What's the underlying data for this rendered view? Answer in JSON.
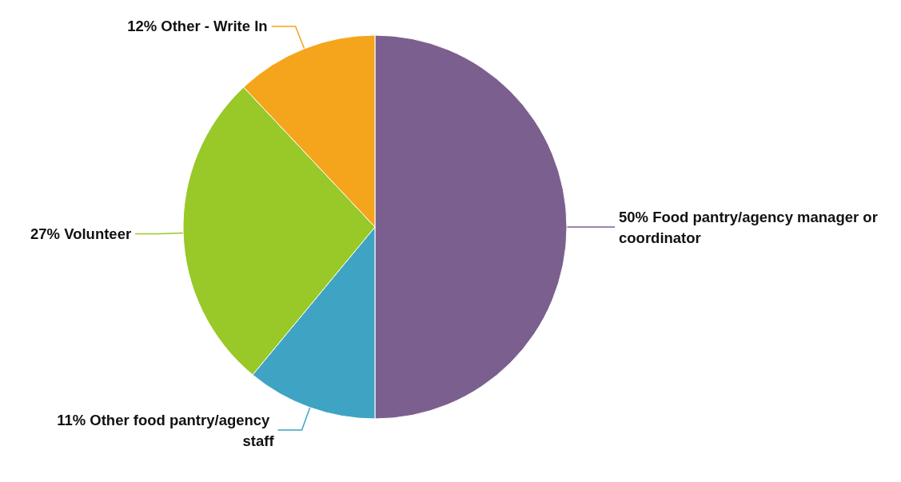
{
  "chart_data": {
    "type": "pie",
    "categories": [
      "Food pantry/agency manager or coordinator",
      "Other food pantry/agency staff",
      "Volunteer",
      "Other - Write In"
    ],
    "values": [
      50,
      11,
      27,
      12
    ],
    "colors": [
      "#7b5f8e",
      "#3fa3c3",
      "#98c928",
      "#f5a51b"
    ],
    "value_labels": [
      "50%",
      "11%",
      "27%",
      "12%"
    ]
  }
}
